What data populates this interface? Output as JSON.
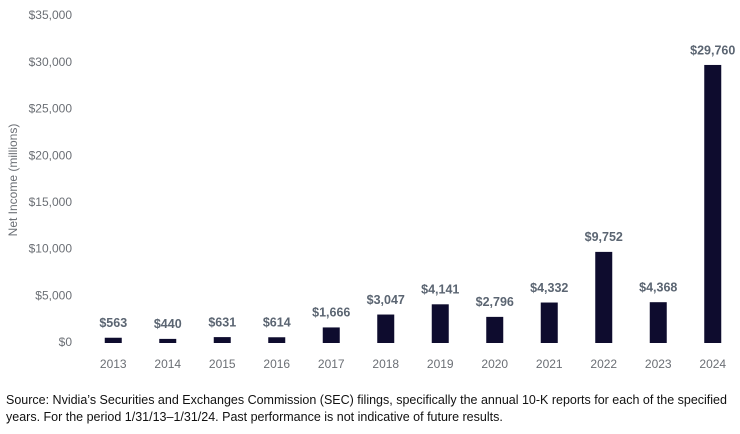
{
  "chart_data": {
    "type": "bar",
    "y_label": "Net Income (millions)",
    "categories": [
      "2013",
      "2014",
      "2015",
      "2016",
      "2017",
      "2018",
      "2019",
      "2020",
      "2021",
      "2022",
      "2023",
      "2024"
    ],
    "values": [
      563,
      440,
      631,
      614,
      1666,
      3047,
      4141,
      2796,
      4332,
      9752,
      4368,
      29760
    ],
    "value_labels": [
      "$563",
      "$440",
      "$631",
      "$614",
      "$1,666",
      "$3,047",
      "$4,141",
      "$2,796",
      "$4,332",
      "$9,752",
      "$4,368",
      "$29,760"
    ],
    "color": "#0e0c2e",
    "ylim": [
      0,
      35000
    ],
    "yticks": [
      {
        "value": 0,
        "label": "$0"
      },
      {
        "value": 5000,
        "label": "$5,000"
      },
      {
        "value": 10000,
        "label": "$10,000"
      },
      {
        "value": 15000,
        "label": "$15,000"
      },
      {
        "value": 20000,
        "label": "$20,000"
      },
      {
        "value": 25000,
        "label": "$25,000"
      },
      {
        "value": 30000,
        "label": "$30,000"
      },
      {
        "value": 35000,
        "label": "$35,000"
      }
    ],
    "grid": false,
    "source": "Source: Nvidia’s Securities and Exchanges Commission (SEC) filings, specifically the annual 10-K reports for each of the specified years. For the period 1/31/13–1/31/24. Past performance is not indicative of future results."
  }
}
